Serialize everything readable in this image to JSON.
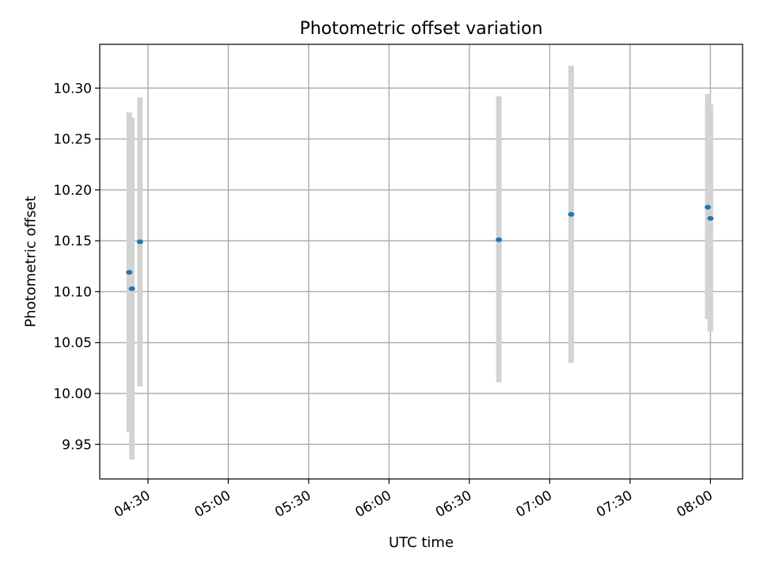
{
  "chart_data": {
    "type": "scatter",
    "title": "Photometric offset variation",
    "xlabel": "UTC time",
    "ylabel": "Photometric offset",
    "grid": true,
    "x_ticks": [
      "04:30",
      "05:00",
      "05:30",
      "06:00",
      "06:30",
      "07:00",
      "07:30",
      "08:00"
    ],
    "y_ticks": [
      "9.95",
      "10.00",
      "10.05",
      "10.10",
      "10.15",
      "10.20",
      "10.25",
      "10.30"
    ],
    "xlim": [
      "04:12",
      "08:12"
    ],
    "ylim": [
      9.916,
      10.343
    ],
    "point_color": "#1f77b4",
    "errorbar_color": "#d3d3d3",
    "points": [
      {
        "x": "04:23",
        "y": 10.119,
        "ymin": 9.962,
        "ymax": 10.276
      },
      {
        "x": "04:24",
        "y": 10.103,
        "ymin": 9.935,
        "ymax": 10.271
      },
      {
        "x": "04:27",
        "y": 10.149,
        "ymin": 10.007,
        "ymax": 10.291
      },
      {
        "x": "06:41",
        "y": 10.151,
        "ymin": 10.011,
        "ymax": 10.292
      },
      {
        "x": "07:08",
        "y": 10.176,
        "ymin": 10.03,
        "ymax": 10.322
      },
      {
        "x": "07:59",
        "y": 10.183,
        "ymin": 10.073,
        "ymax": 10.294
      },
      {
        "x": "08:00",
        "y": 10.172,
        "ymin": 10.061,
        "ymax": 10.284
      }
    ]
  }
}
